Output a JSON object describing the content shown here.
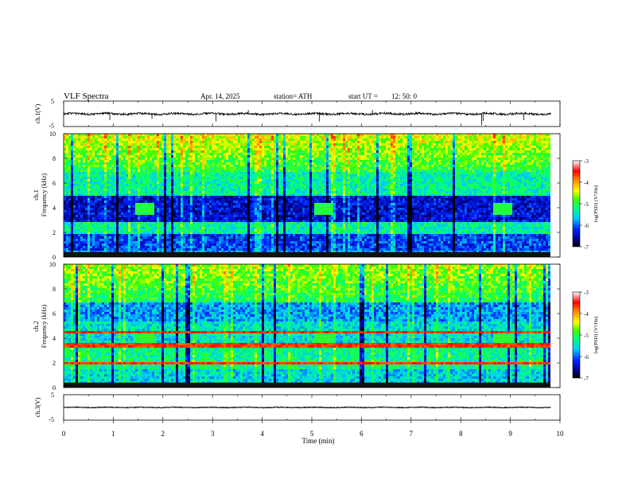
{
  "header": {
    "title": "VLF Spectra",
    "date": "Apr. 14, 2025",
    "station": "station= ATH",
    "start": "start UT =",
    "start_time": "12: 50: 0"
  },
  "chart_data": [
    {
      "id": "ch1-waveform",
      "type": "line",
      "title": "",
      "ylabel": "ch.1(V)",
      "xlabel": "",
      "xlim": [
        0,
        10
      ],
      "ylim": [
        -5,
        5
      ],
      "yticks": [
        -5,
        5
      ],
      "baseline_value": 0,
      "noise_amplitude": 0.8,
      "spikes": [
        [
          0.93,
          -2.5
        ],
        [
          1.78,
          -2.0
        ],
        [
          3.07,
          -3.0
        ],
        [
          3.72,
          1.5
        ],
        [
          5.15,
          -3.0
        ],
        [
          6.22,
          1.5
        ],
        [
          8.42,
          -4.5
        ],
        [
          8.45,
          -2.8
        ],
        [
          9.27,
          -2.5
        ]
      ]
    },
    {
      "id": "ch1-spectrogram",
      "type": "heatmap",
      "title": "",
      "ylabel": "Frequency (kHz)",
      "channel_label": "ch.1",
      "xlabel": "",
      "xlim": [
        0,
        9.8
      ],
      "ylim": [
        0,
        10
      ],
      "yticks": [
        0,
        2,
        4,
        6,
        8,
        10
      ],
      "colorbar": {
        "label": "log(PSD) (V²/Hz)",
        "range": [
          -7,
          -3
        ],
        "ticks": [
          -3,
          -4,
          -5,
          -6,
          -7
        ]
      },
      "features": {
        "dark_band_khz": [
          3.0,
          5.0
        ],
        "pulse_blocks": [
          {
            "t": [
              1.42,
              1.82
            ],
            "f": [
              3.5,
              4.5
            ]
          },
          {
            "t": [
              5.02,
              5.42
            ],
            "f": [
              3.5,
              4.5
            ]
          },
          {
            "t": [
              8.62,
              9.02
            ],
            "f": [
              3.5,
              4.5
            ]
          }
        ]
      }
    },
    {
      "id": "ch2-spectrogram",
      "type": "heatmap",
      "title": "",
      "ylabel": "Frequency (kHz)",
      "channel_label": "ch.2",
      "xlabel": "",
      "xlim": [
        0,
        9.8
      ],
      "ylim": [
        0,
        10
      ],
      "yticks": [
        0,
        2,
        4,
        6,
        8,
        10
      ],
      "colorbar": {
        "label": "log(PSD) (V²/Hz)",
        "range": [
          -7,
          -3
        ],
        "ticks": [
          -3,
          -4,
          -5,
          -6,
          -7
        ]
      },
      "features": {
        "red_lines_khz": [
          2.0,
          3.5,
          4.6
        ],
        "pulse_blocks": [
          {
            "t": [
              1.42,
              1.82
            ],
            "f": [
              3.5,
              4.5
            ]
          },
          {
            "t": [
              5.02,
              5.42
            ],
            "f": [
              3.5,
              4.5
            ]
          },
          {
            "t": [
              8.62,
              9.02
            ],
            "f": [
              3.5,
              4.5
            ]
          }
        ]
      }
    },
    {
      "id": "ch3-waveform",
      "type": "line",
      "title": "",
      "ylabel": "ch.3(V)",
      "xlabel": "Time (min)",
      "xlim": [
        0,
        10
      ],
      "ylim": [
        -5,
        5
      ],
      "yticks": [
        -5,
        5
      ],
      "xticks": [
        0,
        1,
        2,
        3,
        4,
        5,
        6,
        7,
        8,
        9,
        10
      ],
      "baseline_value": 0,
      "noise_amplitude": 0.3,
      "spikes": []
    }
  ]
}
